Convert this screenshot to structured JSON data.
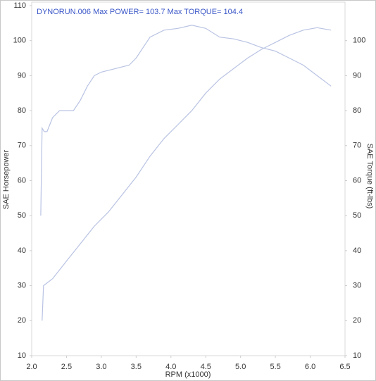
{
  "chart_data": {
    "type": "line",
    "title": "DYNORUN.006  Max POWER= 103.7 Max TORQUE= 104.4",
    "x_label": "RPM (x1000)",
    "y_label": "SAE Horsepower",
    "y2_label": "SAE Torque (ft-lbs)",
    "xlim": [
      2,
      6.5
    ],
    "xticks": [
      {
        "value": 2,
        "label": "2.0"
      },
      2.5,
      {
        "value": 3,
        "label": "3.0"
      },
      3.5,
      {
        "value": 4,
        "label": "4.0"
      },
      4.5,
      {
        "value": 5,
        "label": "5.0"
      },
      5.5,
      {
        "value": 6,
        "label": "6.0"
      },
      6.5
    ],
    "ylim": [
      10,
      111
    ],
    "yticks": [
      10,
      20,
      30,
      40,
      50,
      60,
      70,
      80,
      90,
      100,
      110
    ],
    "y2lim": [
      10,
      111
    ],
    "y2ticks": [
      10,
      20,
      30,
      40,
      50,
      60,
      70,
      80,
      90,
      100
    ],
    "series": [
      {
        "name": "SAE Torque",
        "axis": "y2",
        "color": "#b9c3e3",
        "x": [
          2.13,
          2.15,
          2.18,
          2.22,
          2.3,
          2.4,
          2.5,
          2.6,
          2.7,
          2.8,
          2.9,
          3.0,
          3.2,
          3.4,
          3.5,
          3.7,
          3.9,
          4.1,
          4.3,
          4.5,
          4.7,
          4.9,
          5.1,
          5.3,
          5.5,
          5.7,
          5.9,
          6.1,
          6.3
        ],
        "values": [
          50,
          75,
          74,
          74,
          78,
          80,
          80,
          80,
          83,
          87,
          90,
          91,
          92,
          93,
          95,
          101,
          103,
          103.5,
          104.4,
          103.5,
          101,
          100.5,
          99.5,
          98,
          97,
          95,
          93,
          90,
          87
        ]
      },
      {
        "name": "SAE Horsepower",
        "axis": "y",
        "color": "#b9c3e3",
        "x": [
          2.15,
          2.17,
          2.3,
          2.5,
          2.7,
          2.9,
          3.1,
          3.3,
          3.5,
          3.7,
          3.9,
          4.1,
          4.3,
          4.5,
          4.7,
          4.9,
          5.1,
          5.3,
          5.5,
          5.7,
          5.9,
          6.1,
          6.3
        ],
        "values": [
          20,
          30,
          32,
          37,
          42,
          47,
          51,
          56,
          61,
          67,
          72,
          76,
          80,
          85,
          89,
          92,
          95,
          97.5,
          99.5,
          101.5,
          103,
          103.7,
          103
        ]
      }
    ]
  }
}
